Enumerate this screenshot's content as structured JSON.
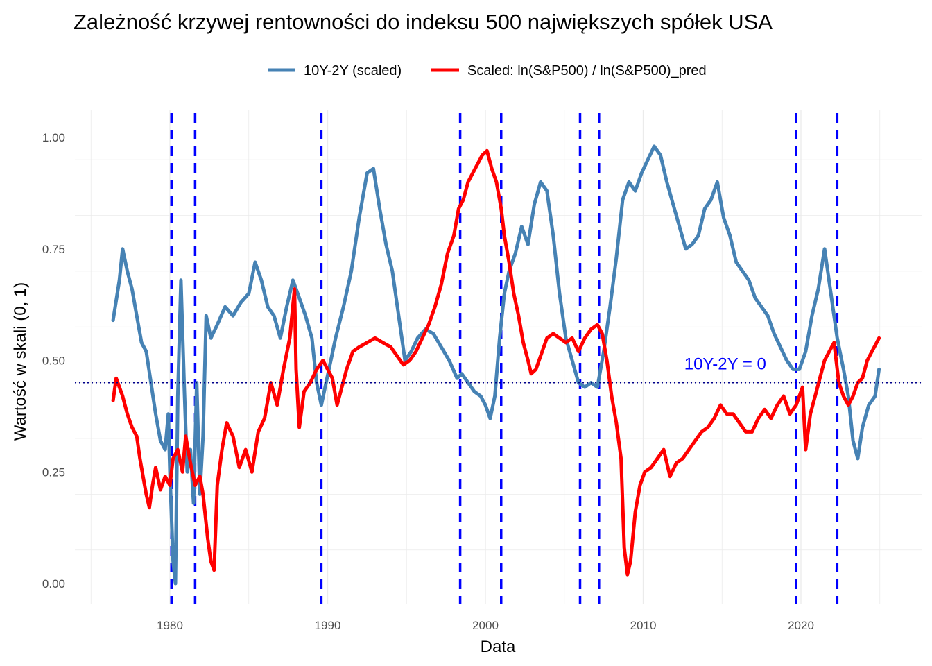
{
  "chart_data": {
    "type": "line",
    "title": "Zależność krzywej rentowności do indeksu 500 największych spółek USA",
    "xlabel": "Data",
    "ylabel": "Wartość w skali (0, 1)",
    "xlim": [
      1975,
      2027
    ],
    "ylim": [
      -0.05,
      1.07
    ],
    "x_ticks": [
      1980,
      1990,
      2000,
      2010,
      2020
    ],
    "x_tick_labels": [
      "1980",
      "1990",
      "2000",
      "2010",
      "2020"
    ],
    "y_ticks": [
      0.0,
      0.25,
      0.5,
      0.75,
      1.0
    ],
    "y_tick_labels": [
      "0.00",
      "0.25",
      "0.50",
      "0.75",
      "1.00"
    ],
    "grid": true,
    "legend_position": "top",
    "series": [
      {
        "name": "10Y-2Y (scaled)",
        "color": "#4682B4",
        "x": [
          1976.4,
          1976.8,
          1977.0,
          1977.3,
          1977.6,
          1977.9,
          1978.2,
          1978.5,
          1978.8,
          1979.1,
          1979.4,
          1979.7,
          1979.9,
          1980.0,
          1980.1,
          1980.2,
          1980.35,
          1980.5,
          1980.7,
          1980.9,
          1981.1,
          1981.3,
          1981.5,
          1981.7,
          1981.9,
          1982.1,
          1982.3,
          1982.6,
          1983.0,
          1983.5,
          1984.0,
          1984.5,
          1985.0,
          1985.4,
          1985.8,
          1986.2,
          1986.6,
          1987.0,
          1987.4,
          1987.8,
          1988.2,
          1988.6,
          1989.0,
          1989.3,
          1989.6,
          1989.9,
          1990.2,
          1990.5,
          1991.0,
          1991.5,
          1992.0,
          1992.5,
          1992.9,
          1993.3,
          1993.7,
          1994.1,
          1994.5,
          1994.9,
          1995.3,
          1995.7,
          1996.2,
          1996.7,
          1997.2,
          1997.7,
          1998.2,
          1998.5,
          1998.9,
          1999.3,
          1999.7,
          2000.0,
          2000.3,
          2000.6,
          2000.9,
          2001.2,
          2001.5,
          2001.9,
          2002.3,
          2002.7,
          2003.1,
          2003.5,
          2003.9,
          2004.3,
          2004.7,
          2005.1,
          2005.5,
          2005.9,
          2006.3,
          2006.7,
          2007.1,
          2007.5,
          2007.9,
          2008.3,
          2008.7,
          2009.1,
          2009.5,
          2009.9,
          2010.3,
          2010.7,
          2011.1,
          2011.5,
          2011.9,
          2012.3,
          2012.7,
          2013.1,
          2013.5,
          2013.9,
          2014.3,
          2014.7,
          2015.1,
          2015.5,
          2015.9,
          2016.3,
          2016.7,
          2017.1,
          2017.5,
          2017.9,
          2018.3,
          2018.7,
          2019.1,
          2019.5,
          2019.9,
          2020.3,
          2020.7,
          2021.1,
          2021.5,
          2021.9,
          2022.3,
          2022.7,
          2023.0,
          2023.3,
          2023.6,
          2023.9,
          2024.3,
          2024.7,
          2024.95
        ],
        "values": [
          0.59,
          0.68,
          0.75,
          0.7,
          0.66,
          0.6,
          0.54,
          0.52,
          0.45,
          0.38,
          0.32,
          0.3,
          0.38,
          0.25,
          0.15,
          0.05,
          0.0,
          0.42,
          0.68,
          0.45,
          0.25,
          0.3,
          0.18,
          0.45,
          0.2,
          0.33,
          0.6,
          0.55,
          0.58,
          0.62,
          0.6,
          0.63,
          0.65,
          0.72,
          0.68,
          0.62,
          0.6,
          0.55,
          0.62,
          0.68,
          0.64,
          0.6,
          0.55,
          0.45,
          0.4,
          0.45,
          0.5,
          0.55,
          0.62,
          0.7,
          0.82,
          0.92,
          0.93,
          0.84,
          0.76,
          0.7,
          0.6,
          0.5,
          0.52,
          0.55,
          0.57,
          0.56,
          0.53,
          0.5,
          0.46,
          0.47,
          0.45,
          0.43,
          0.42,
          0.4,
          0.37,
          0.42,
          0.55,
          0.65,
          0.7,
          0.74,
          0.8,
          0.76,
          0.85,
          0.9,
          0.88,
          0.78,
          0.65,
          0.55,
          0.5,
          0.45,
          0.44,
          0.45,
          0.44,
          0.52,
          0.62,
          0.73,
          0.86,
          0.9,
          0.88,
          0.92,
          0.95,
          0.98,
          0.96,
          0.9,
          0.85,
          0.8,
          0.75,
          0.76,
          0.78,
          0.84,
          0.86,
          0.9,
          0.82,
          0.78,
          0.72,
          0.7,
          0.68,
          0.64,
          0.62,
          0.6,
          0.56,
          0.53,
          0.5,
          0.48,
          0.48,
          0.52,
          0.6,
          0.66,
          0.75,
          0.65,
          0.55,
          0.48,
          0.42,
          0.32,
          0.28,
          0.35,
          0.4,
          0.42,
          0.48
        ],
        "line_width": 5
      },
      {
        "name": "Scaled: ln(S&P500) / ln(S&P500)_pred",
        "color": "#FF0000",
        "x": [
          1976.4,
          1976.6,
          1976.8,
          1977.0,
          1977.3,
          1977.6,
          1977.9,
          1978.1,
          1978.3,
          1978.5,
          1978.7,
          1978.9,
          1979.1,
          1979.4,
          1979.7,
          1980.0,
          1980.2,
          1980.5,
          1980.8,
          1981.0,
          1981.3,
          1981.6,
          1981.9,
          1982.1,
          1982.4,
          1982.6,
          1982.8,
          1983.0,
          1983.3,
          1983.6,
          1984.0,
          1984.4,
          1984.8,
          1985.2,
          1985.6,
          1986.0,
          1986.4,
          1986.8,
          1987.2,
          1987.6,
          1987.9,
          1988.0,
          1988.2,
          1988.5,
          1988.9,
          1989.3,
          1989.7,
          1990.0,
          1990.3,
          1990.6,
          1990.9,
          1991.2,
          1991.6,
          1992.0,
          1992.5,
          1993.0,
          1993.5,
          1994.0,
          1994.4,
          1994.8,
          1995.2,
          1995.6,
          1996.0,
          1996.4,
          1996.8,
          1997.2,
          1997.6,
          1998.0,
          1998.3,
          1998.6,
          1998.9,
          1999.2,
          1999.5,
          1999.8,
          2000.1,
          2000.4,
          2000.7,
          2001.0,
          2001.2,
          2001.5,
          2001.8,
          2002.1,
          2002.4,
          2002.7,
          2002.9,
          2003.2,
          2003.5,
          2003.9,
          2004.3,
          2004.7,
          2005.1,
          2005.5,
          2005.9,
          2006.3,
          2006.7,
          2007.1,
          2007.4,
          2007.7,
          2008.0,
          2008.3,
          2008.6,
          2008.8,
          2009.0,
          2009.2,
          2009.5,
          2009.8,
          2010.1,
          2010.5,
          2010.9,
          2011.3,
          2011.7,
          2012.1,
          2012.5,
          2012.9,
          2013.3,
          2013.7,
          2014.1,
          2014.5,
          2014.9,
          2015.3,
          2015.7,
          2016.1,
          2016.5,
          2016.9,
          2017.3,
          2017.7,
          2018.1,
          2018.5,
          2018.9,
          2019.3,
          2019.7,
          2020.1,
          2020.3,
          2020.6,
          2020.9,
          2021.2,
          2021.5,
          2021.8,
          2022.1,
          2022.4,
          2022.7,
          2023.0,
          2023.3,
          2023.6,
          2023.9,
          2024.2,
          2024.5,
          2024.8,
          2024.95
        ],
        "values": [
          0.41,
          0.46,
          0.44,
          0.42,
          0.38,
          0.35,
          0.33,
          0.28,
          0.24,
          0.2,
          0.17,
          0.22,
          0.26,
          0.21,
          0.24,
          0.22,
          0.28,
          0.3,
          0.25,
          0.33,
          0.27,
          0.22,
          0.24,
          0.2,
          0.1,
          0.05,
          0.03,
          0.22,
          0.3,
          0.36,
          0.33,
          0.26,
          0.3,
          0.25,
          0.34,
          0.37,
          0.45,
          0.4,
          0.48,
          0.55,
          0.66,
          0.48,
          0.35,
          0.43,
          0.45,
          0.48,
          0.5,
          0.48,
          0.46,
          0.4,
          0.44,
          0.48,
          0.52,
          0.53,
          0.54,
          0.55,
          0.54,
          0.53,
          0.51,
          0.49,
          0.5,
          0.52,
          0.55,
          0.58,
          0.62,
          0.67,
          0.74,
          0.78,
          0.84,
          0.86,
          0.9,
          0.92,
          0.94,
          0.96,
          0.97,
          0.93,
          0.9,
          0.84,
          0.78,
          0.72,
          0.65,
          0.6,
          0.54,
          0.5,
          0.47,
          0.48,
          0.51,
          0.55,
          0.56,
          0.55,
          0.54,
          0.55,
          0.52,
          0.55,
          0.57,
          0.58,
          0.56,
          0.5,
          0.42,
          0.36,
          0.28,
          0.08,
          0.02,
          0.05,
          0.16,
          0.22,
          0.25,
          0.26,
          0.28,
          0.3,
          0.24,
          0.27,
          0.28,
          0.3,
          0.32,
          0.34,
          0.35,
          0.37,
          0.4,
          0.38,
          0.38,
          0.36,
          0.34,
          0.34,
          0.37,
          0.39,
          0.37,
          0.4,
          0.42,
          0.38,
          0.4,
          0.44,
          0.3,
          0.38,
          0.42,
          0.46,
          0.5,
          0.52,
          0.54,
          0.45,
          0.42,
          0.4,
          0.42,
          0.45,
          0.46,
          0.5,
          0.52,
          0.54,
          0.55
        ],
        "line_width": 5
      }
    ],
    "vlines": {
      "x": [
        1980.1,
        1981.6,
        1989.6,
        1998.4,
        2001.0,
        2006.0,
        2007.2,
        2019.7,
        2022.3
      ],
      "color": "#0000FF",
      "style": "dashed"
    },
    "hline": {
      "y": 0.45,
      "color": "#00008B",
      "style": "dotted",
      "label": "10Y-2Y = 0",
      "label_color": "#0000FF",
      "label_x": 2015.2
    }
  }
}
